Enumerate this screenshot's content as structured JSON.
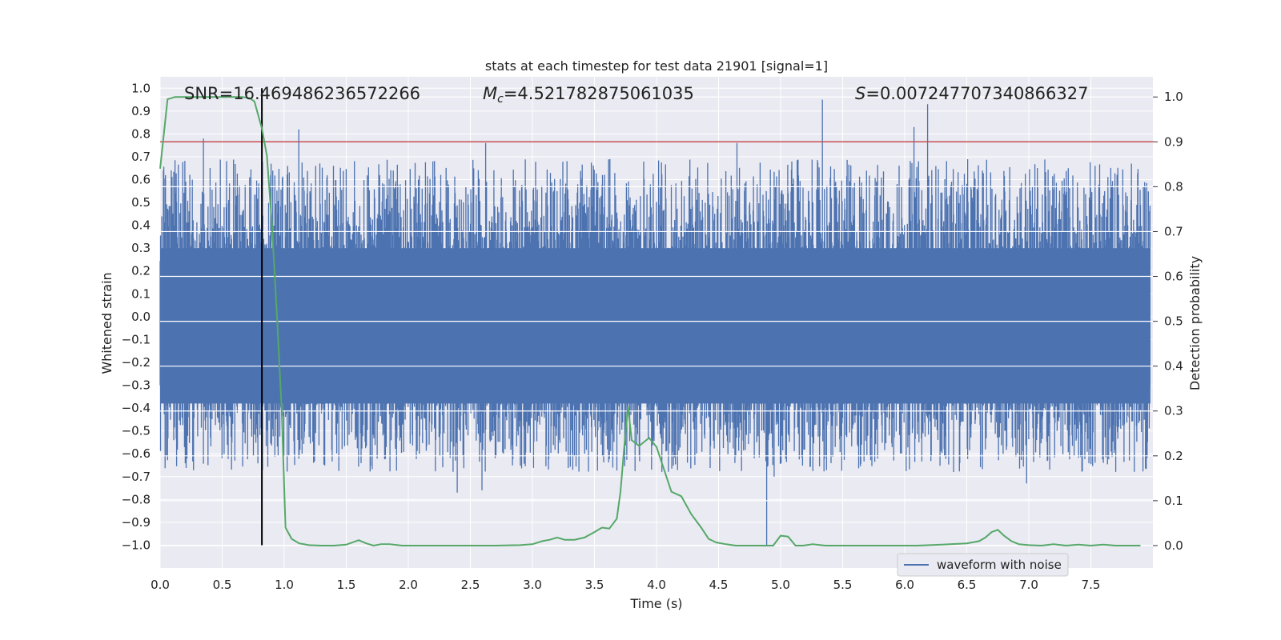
{
  "chart_data": {
    "type": "line",
    "title": "stats at each timestep for test data 21901 [signal=1]",
    "xlabel": "Time (s)",
    "ylabel": "Whitened strain",
    "ylabel_right": "Detection probability",
    "xlim": [
      0.0,
      8.0
    ],
    "ylim": [
      -1.1,
      1.05
    ],
    "ylim_right": [
      -0.05,
      1.045
    ],
    "x_ticks": [
      0.0,
      0.5,
      1.0,
      1.5,
      2.0,
      2.5,
      3.0,
      3.5,
      4.0,
      4.5,
      5.0,
      5.5,
      6.0,
      6.5,
      7.0,
      7.5
    ],
    "y_ticks": [
      1.0,
      0.9,
      0.8,
      0.7,
      0.6,
      0.5,
      0.4,
      0.3,
      0.2,
      0.1,
      0.0,
      -0.1,
      -0.2,
      -0.3,
      -0.4,
      -0.5,
      -0.6,
      -0.7,
      -0.8,
      -0.9,
      -1.0
    ],
    "y_ticks_right": [
      1.0,
      0.9,
      0.8,
      0.7,
      0.6,
      0.5,
      0.4,
      0.3,
      0.2,
      0.1,
      0.0
    ],
    "grid": true,
    "legend_position": "lower-right",
    "annotations": {
      "snr": "SNR=16.469486236572266",
      "mc_symbol": "M",
      "mc_sub": "c",
      "mc_value": "=4.521782875061035",
      "s_symbol": "S",
      "s_value": "=0.007247707340866327"
    },
    "series": [
      {
        "name": "waveform with noise",
        "axis": "left",
        "color": "#4c72b0",
        "style": "dense noise band",
        "core_band": [
          -0.38,
          0.3
        ],
        "envelope_peaks": [
          {
            "x": 0.35,
            "y": 0.78
          },
          {
            "x": 1.12,
            "y": 0.82
          },
          {
            "x": 2.63,
            "y": 0.76
          },
          {
            "x": 4.66,
            "y": 0.76
          },
          {
            "x": 5.35,
            "y": 0.95
          },
          {
            "x": 6.09,
            "y": 0.83
          },
          {
            "x": 6.2,
            "y": 0.93
          }
        ],
        "envelope_troughs": [
          {
            "x": 2.4,
            "y": -0.77
          },
          {
            "x": 2.6,
            "y": -0.76
          },
          {
            "x": 4.9,
            "y": -1.0
          },
          {
            "x": 4.96,
            "y": -0.7
          },
          {
            "x": 7.0,
            "y": -0.73
          }
        ]
      },
      {
        "name": "",
        "axis": "right",
        "color": "#55a868",
        "x": [
          0.0,
          0.06,
          0.12,
          0.2,
          0.3,
          0.4,
          0.5,
          0.6,
          0.66,
          0.72,
          0.76,
          0.82,
          0.86,
          0.9,
          0.94,
          0.98,
          1.01,
          1.06,
          1.12,
          1.2,
          1.3,
          1.4,
          1.5,
          1.6,
          1.66,
          1.72,
          1.78,
          1.85,
          1.95,
          2.1,
          2.3,
          2.5,
          2.7,
          2.9,
          3.0,
          3.08,
          3.14,
          3.2,
          3.26,
          3.34,
          3.42,
          3.5,
          3.56,
          3.62,
          3.68,
          3.71,
          3.74,
          3.77,
          3.8,
          3.86,
          3.94,
          4.0,
          4.06,
          4.12,
          4.2,
          4.28,
          4.36,
          4.42,
          4.48,
          4.56,
          4.64,
          4.74,
          4.86,
          4.94,
          5.0,
          5.06,
          5.12,
          5.18,
          5.26,
          5.36,
          5.5,
          5.7,
          5.9,
          6.1,
          6.3,
          6.5,
          6.6,
          6.65,
          6.7,
          6.75,
          6.8,
          6.86,
          6.92,
          7.0,
          7.1,
          7.2,
          7.3,
          7.4,
          7.5,
          7.6,
          7.7,
          7.8,
          7.9
        ],
        "y": [
          0.84,
          0.995,
          1.0,
          1.0,
          1.0,
          1.0,
          1.0,
          1.0,
          1.0,
          0.998,
          0.99,
          0.93,
          0.87,
          0.72,
          0.52,
          0.3,
          0.04,
          0.015,
          0.005,
          0.001,
          0.0,
          0.0,
          0.002,
          0.012,
          0.005,
          0.0,
          0.003,
          0.003,
          0.0,
          0.0,
          0.0,
          0.0,
          0.0,
          0.001,
          0.003,
          0.01,
          0.013,
          0.018,
          0.013,
          0.013,
          0.018,
          0.03,
          0.04,
          0.038,
          0.06,
          0.12,
          0.22,
          0.31,
          0.235,
          0.222,
          0.24,
          0.22,
          0.17,
          0.12,
          0.11,
          0.07,
          0.04,
          0.015,
          0.007,
          0.003,
          0.0,
          0.0,
          0.0,
          0.0,
          0.022,
          0.02,
          0.0,
          0.0,
          0.003,
          0.0,
          0.0,
          0.0,
          0.0,
          0.0,
          0.002,
          0.005,
          0.01,
          0.018,
          0.03,
          0.035,
          0.022,
          0.01,
          0.003,
          0.001,
          0.0,
          0.003,
          0.0,
          0.002,
          0.0,
          0.002,
          0.0,
          0.0,
          0.0
        ]
      }
    ],
    "threshold_line": {
      "axis": "right",
      "value": 0.9,
      "color": "#c44e52"
    },
    "marker_line": {
      "x": 0.82,
      "y_from": -1.0,
      "y_to": 1.0,
      "color": "#000000"
    }
  }
}
